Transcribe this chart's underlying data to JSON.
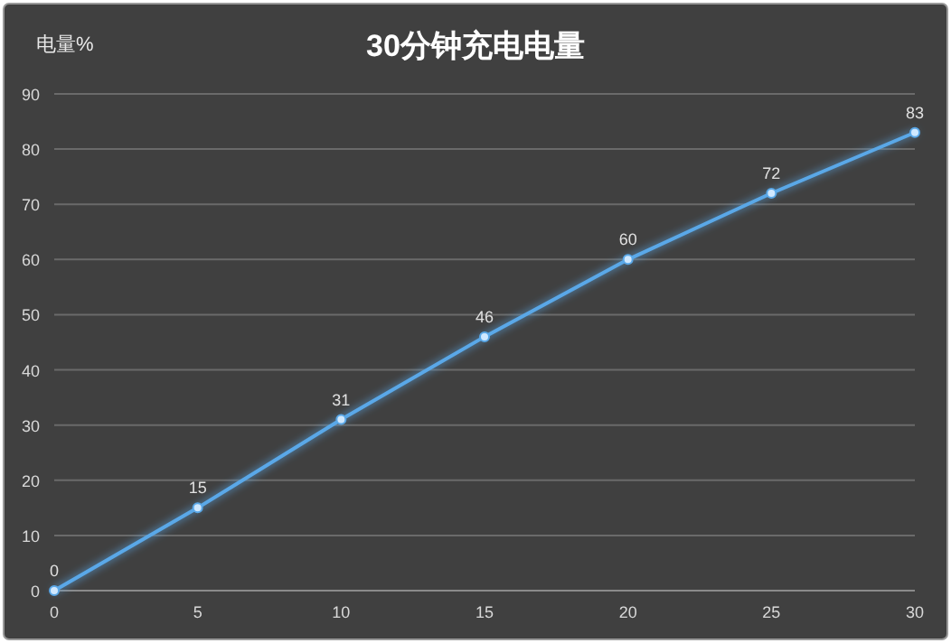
{
  "chart_data": {
    "type": "line",
    "title": "30分钟充电电量",
    "ylabel": "电量%",
    "x": [
      0,
      5,
      10,
      15,
      20,
      25,
      30
    ],
    "series": [
      {
        "color": "#5aa8e8",
        "values": [
          0,
          15,
          31,
          46,
          60,
          72,
          83
        ]
      }
    ],
    "xlim": [
      0,
      30
    ],
    "ylim": [
      0,
      90
    ],
    "xticks": [
      0,
      5,
      10,
      15,
      20,
      25,
      30
    ],
    "yticks": [
      0,
      10,
      20,
      30,
      40,
      50,
      60,
      70,
      80,
      90
    ],
    "grid": "y",
    "data_labels": true,
    "marker": "circle",
    "line_style": "solid"
  }
}
